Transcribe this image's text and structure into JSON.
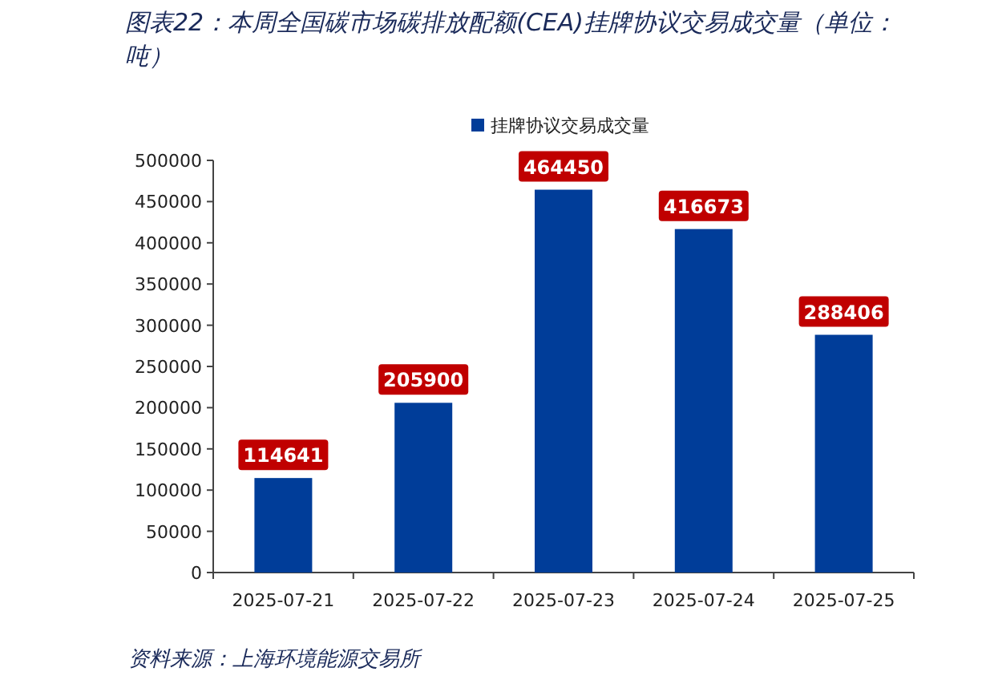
{
  "chart_data": {
    "type": "bar",
    "title": "图表22：本周全国碳市场碳排放配额(CEA)挂牌协议交易成交量（单位：吨）",
    "categories": [
      "2025-07-21",
      "2025-07-22",
      "2025-07-23",
      "2025-07-24",
      "2025-07-25"
    ],
    "series": [
      {
        "name": "挂牌协议交易成交量",
        "color": "#003d99",
        "values": [
          114641,
          205900,
          464450,
          416673,
          288406
        ]
      }
    ],
    "ylim": [
      0,
      500000
    ],
    "yticks": [
      0,
      50000,
      100000,
      150000,
      200000,
      250000,
      300000,
      350000,
      400000,
      450000,
      500000
    ],
    "data_labels": true,
    "legend": "top",
    "grid": false,
    "annotations": [
      "资料来源：上海环境能源交易所"
    ]
  }
}
